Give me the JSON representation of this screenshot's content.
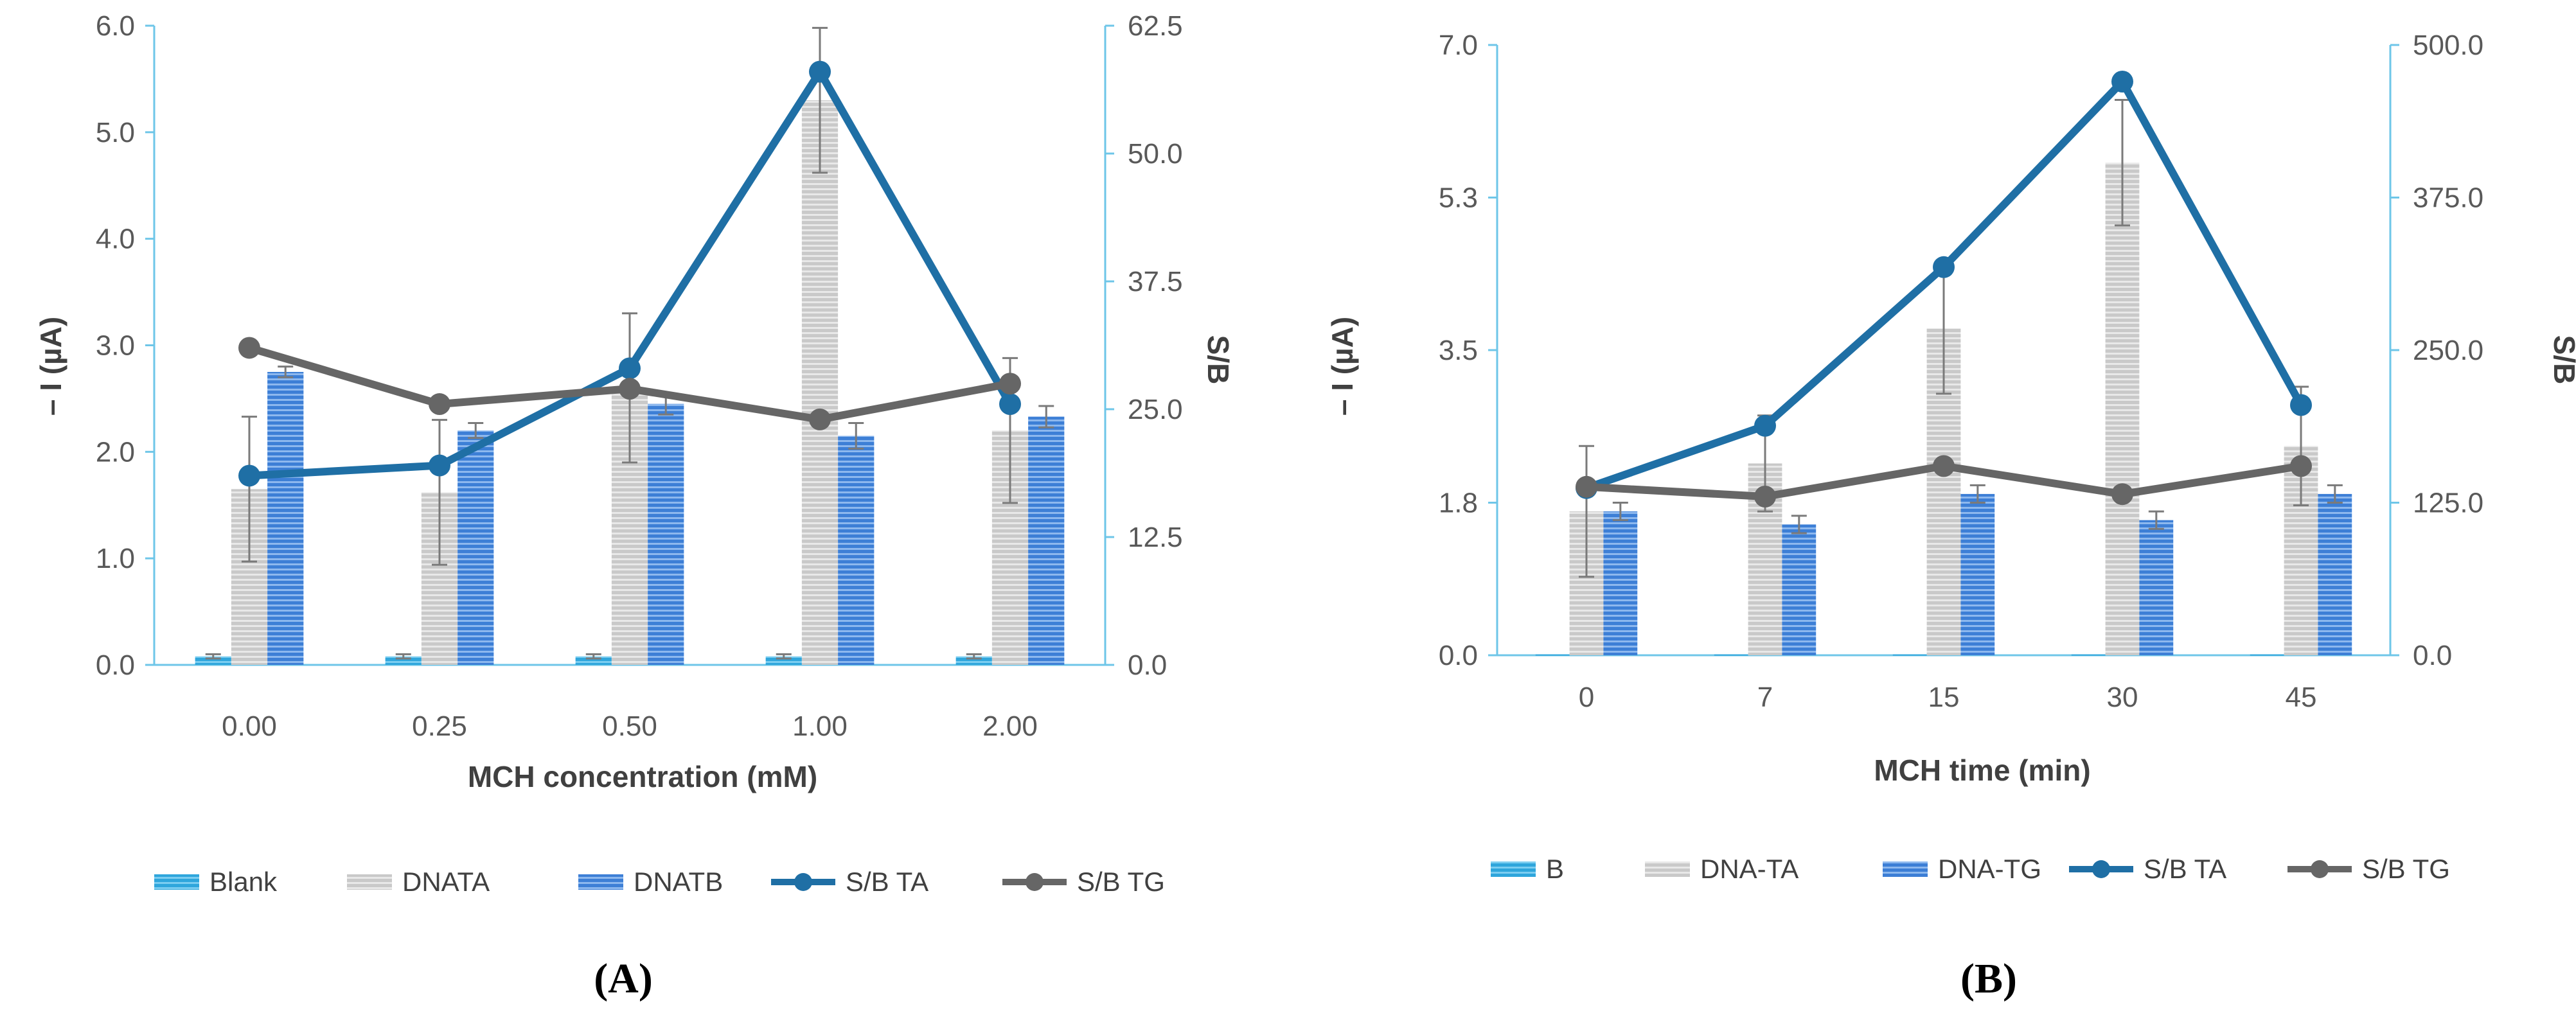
{
  "colors": {
    "blank": "#2fa6dc",
    "dna_ta": "#c9c9c9",
    "dna_tb": "#3d7fd6",
    "sb_ta": "#1f6fa5",
    "sb_tg": "#666666",
    "axis": "#6ec6e8",
    "error": "#7a7a7a"
  },
  "chart_data": [
    {
      "type": "bar",
      "panel": "A",
      "panel_label": "(A)",
      "xlabel": "MCH concentration (mM)",
      "ylabel_left": "– I (µA)",
      "ylabel_right": "S/B",
      "categories": [
        "0.00",
        "0.25",
        "0.50",
        "1.00",
        "2.00"
      ],
      "left_ylim": [
        0,
        6
      ],
      "left_ticks": [
        "0.0",
        "1.0",
        "2.0",
        "3.0",
        "4.0",
        "5.0",
        "6.0"
      ],
      "right_ylim": [
        0,
        62.5
      ],
      "right_ticks": [
        "0.0",
        "12.5",
        "25.0",
        "37.5",
        "50.0",
        "62.5"
      ],
      "bar_series": [
        {
          "name": "Blank",
          "color_key": "blank",
          "values": [
            0.08,
            0.08,
            0.08,
            0.08,
            0.08
          ],
          "errors": [
            0.02,
            0.02,
            0.02,
            0.02,
            0.02
          ]
        },
        {
          "name": "DNATA",
          "color_key": "dna_ta",
          "values": [
            1.65,
            1.62,
            2.6,
            5.3,
            2.2
          ],
          "errors": [
            0.68,
            0.68,
            0.7,
            0.68,
            0.68
          ]
        },
        {
          "name": "DNATB",
          "color_key": "dna_tb",
          "values": [
            2.75,
            2.2,
            2.45,
            2.15,
            2.33
          ],
          "errors": [
            0.05,
            0.07,
            0.1,
            0.12,
            0.1
          ]
        }
      ],
      "line_series": [
        {
          "name": "S/B TA",
          "color_key": "sb_ta",
          "values": [
            18.5,
            19.5,
            29.0,
            58.0,
            25.5
          ]
        },
        {
          "name": "S/B TG",
          "color_key": "sb_tg",
          "values": [
            31.0,
            25.5,
            27.0,
            24.0,
            27.5
          ]
        }
      ],
      "legend": [
        "Blank",
        "DNATA",
        "DNATB",
        "S/B TA",
        "S/B TG"
      ]
    },
    {
      "type": "bar",
      "panel": "B",
      "panel_label": "(B)",
      "xlabel": "MCH time (min)",
      "ylabel_left": "– I (µA)",
      "ylabel_right": "S/B",
      "categories": [
        "0",
        "7",
        "15",
        "30",
        "45"
      ],
      "left_ylim": [
        0,
        7
      ],
      "left_ticks": [
        "0.0",
        "1.8",
        "3.5",
        "5.3",
        "7.0"
      ],
      "right_ylim": [
        0,
        500
      ],
      "right_ticks": [
        "0.0",
        "125.0",
        "250.0",
        "375.0",
        "500.0"
      ],
      "bar_series": [
        {
          "name": "B",
          "color_key": "blank",
          "values": [
            0.01,
            0.01,
            0.01,
            0.01,
            0.01
          ],
          "errors": [
            0,
            0,
            0,
            0,
            0
          ]
        },
        {
          "name": "DNA-TA",
          "color_key": "dna_ta",
          "values": [
            1.65,
            2.2,
            3.75,
            5.65,
            2.4
          ],
          "errors": [
            0.75,
            0.55,
            0.75,
            0.72,
            0.68
          ]
        },
        {
          "name": "DNA-TG",
          "color_key": "dna_tb",
          "values": [
            1.65,
            1.5,
            1.85,
            1.55,
            1.85
          ],
          "errors": [
            0.1,
            0.1,
            0.1,
            0.1,
            0.1
          ]
        }
      ],
      "line_series": [
        {
          "name": "S/B TA",
          "color_key": "sb_ta",
          "values": [
            137,
            188,
            318,
            470,
            205
          ]
        },
        {
          "name": "S/B TG",
          "color_key": "sb_tg",
          "values": [
            138,
            130,
            155,
            132,
            155
          ]
        }
      ],
      "legend": [
        "B",
        "DNA-TA",
        "DNA-TG",
        "S/B TA",
        "S/B TG"
      ]
    }
  ]
}
